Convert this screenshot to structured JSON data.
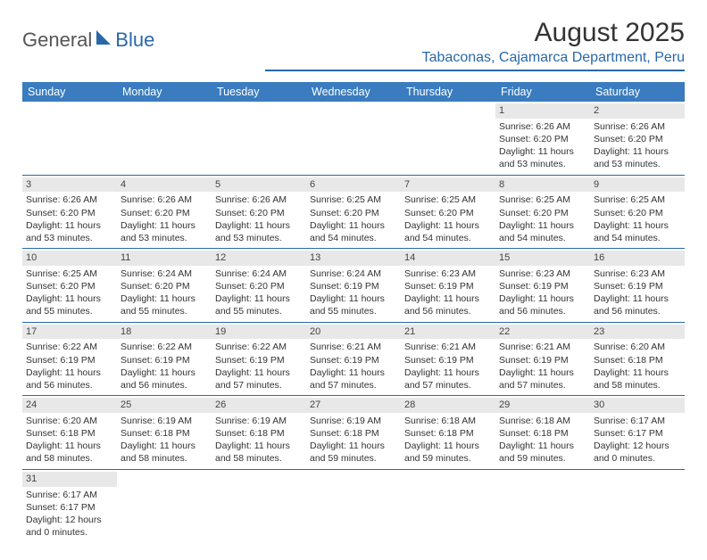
{
  "logo": {
    "text1": "General",
    "text2": "Blue",
    "accent_color": "#2968a8"
  },
  "title": "August 2025",
  "location": "Tabaconas, Cajamarca Department, Peru",
  "colors": {
    "header_bg": "#3a7cbf",
    "header_fg": "#ffffff",
    "rule": "#2968a8",
    "daynum_bg": "#e8e8e8",
    "text": "#333333"
  },
  "weekday_headers": [
    "Sunday",
    "Monday",
    "Tuesday",
    "Wednesday",
    "Thursday",
    "Friday",
    "Saturday"
  ],
  "first_weekday_index": 5,
  "days": [
    {
      "n": 1,
      "sr": "6:26 AM",
      "ss": "6:20 PM",
      "dl": "11 hours and 53 minutes."
    },
    {
      "n": 2,
      "sr": "6:26 AM",
      "ss": "6:20 PM",
      "dl": "11 hours and 53 minutes."
    },
    {
      "n": 3,
      "sr": "6:26 AM",
      "ss": "6:20 PM",
      "dl": "11 hours and 53 minutes."
    },
    {
      "n": 4,
      "sr": "6:26 AM",
      "ss": "6:20 PM",
      "dl": "11 hours and 53 minutes."
    },
    {
      "n": 5,
      "sr": "6:26 AM",
      "ss": "6:20 PM",
      "dl": "11 hours and 53 minutes."
    },
    {
      "n": 6,
      "sr": "6:25 AM",
      "ss": "6:20 PM",
      "dl": "11 hours and 54 minutes."
    },
    {
      "n": 7,
      "sr": "6:25 AM",
      "ss": "6:20 PM",
      "dl": "11 hours and 54 minutes."
    },
    {
      "n": 8,
      "sr": "6:25 AM",
      "ss": "6:20 PM",
      "dl": "11 hours and 54 minutes."
    },
    {
      "n": 9,
      "sr": "6:25 AM",
      "ss": "6:20 PM",
      "dl": "11 hours and 54 minutes."
    },
    {
      "n": 10,
      "sr": "6:25 AM",
      "ss": "6:20 PM",
      "dl": "11 hours and 55 minutes."
    },
    {
      "n": 11,
      "sr": "6:24 AM",
      "ss": "6:20 PM",
      "dl": "11 hours and 55 minutes."
    },
    {
      "n": 12,
      "sr": "6:24 AM",
      "ss": "6:20 PM",
      "dl": "11 hours and 55 minutes."
    },
    {
      "n": 13,
      "sr": "6:24 AM",
      "ss": "6:19 PM",
      "dl": "11 hours and 55 minutes."
    },
    {
      "n": 14,
      "sr": "6:23 AM",
      "ss": "6:19 PM",
      "dl": "11 hours and 56 minutes."
    },
    {
      "n": 15,
      "sr": "6:23 AM",
      "ss": "6:19 PM",
      "dl": "11 hours and 56 minutes."
    },
    {
      "n": 16,
      "sr": "6:23 AM",
      "ss": "6:19 PM",
      "dl": "11 hours and 56 minutes."
    },
    {
      "n": 17,
      "sr": "6:22 AM",
      "ss": "6:19 PM",
      "dl": "11 hours and 56 minutes."
    },
    {
      "n": 18,
      "sr": "6:22 AM",
      "ss": "6:19 PM",
      "dl": "11 hours and 56 minutes."
    },
    {
      "n": 19,
      "sr": "6:22 AM",
      "ss": "6:19 PM",
      "dl": "11 hours and 57 minutes."
    },
    {
      "n": 20,
      "sr": "6:21 AM",
      "ss": "6:19 PM",
      "dl": "11 hours and 57 minutes."
    },
    {
      "n": 21,
      "sr": "6:21 AM",
      "ss": "6:19 PM",
      "dl": "11 hours and 57 minutes."
    },
    {
      "n": 22,
      "sr": "6:21 AM",
      "ss": "6:19 PM",
      "dl": "11 hours and 57 minutes."
    },
    {
      "n": 23,
      "sr": "6:20 AM",
      "ss": "6:18 PM",
      "dl": "11 hours and 58 minutes."
    },
    {
      "n": 24,
      "sr": "6:20 AM",
      "ss": "6:18 PM",
      "dl": "11 hours and 58 minutes."
    },
    {
      "n": 25,
      "sr": "6:19 AM",
      "ss": "6:18 PM",
      "dl": "11 hours and 58 minutes."
    },
    {
      "n": 26,
      "sr": "6:19 AM",
      "ss": "6:18 PM",
      "dl": "11 hours and 58 minutes."
    },
    {
      "n": 27,
      "sr": "6:19 AM",
      "ss": "6:18 PM",
      "dl": "11 hours and 59 minutes."
    },
    {
      "n": 28,
      "sr": "6:18 AM",
      "ss": "6:18 PM",
      "dl": "11 hours and 59 minutes."
    },
    {
      "n": 29,
      "sr": "6:18 AM",
      "ss": "6:18 PM",
      "dl": "11 hours and 59 minutes."
    },
    {
      "n": 30,
      "sr": "6:17 AM",
      "ss": "6:17 PM",
      "dl": "12 hours and 0 minutes."
    },
    {
      "n": 31,
      "sr": "6:17 AM",
      "ss": "6:17 PM",
      "dl": "12 hours and 0 minutes."
    }
  ],
  "labels": {
    "sunrise": "Sunrise: ",
    "sunset": "Sunset: ",
    "daylight": "Daylight: "
  }
}
